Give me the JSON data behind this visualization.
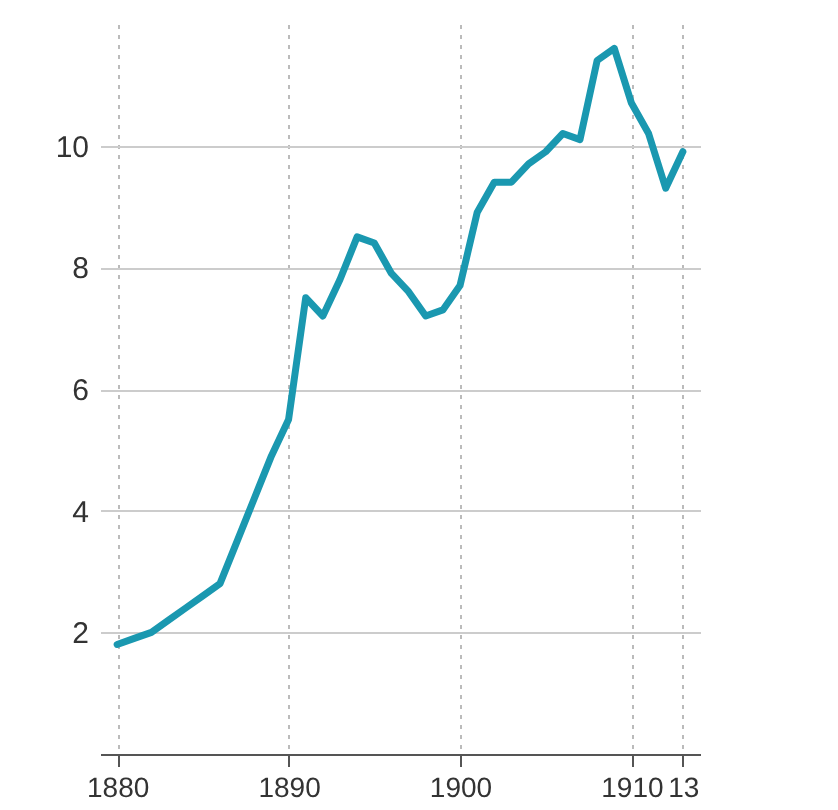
{
  "chart_data": {
    "type": "line",
    "x": [
      1880,
      1881,
      1882,
      1883,
      1884,
      1885,
      1886,
      1887,
      1888,
      1889,
      1890,
      1891,
      1892,
      1893,
      1894,
      1895,
      1896,
      1897,
      1898,
      1899,
      1900,
      1901,
      1902,
      1903,
      1904,
      1905,
      1906,
      1907,
      1908,
      1909,
      1910,
      1911,
      1912,
      1913
    ],
    "series": [
      {
        "color": "#1a98b0",
        "values": [
          1.8,
          1.9,
          2.0,
          2.2,
          2.4,
          2.6,
          2.8,
          3.5,
          4.2,
          4.9,
          5.5,
          7.5,
          7.2,
          7.8,
          8.5,
          8.4,
          7.9,
          7.6,
          7.2,
          7.3,
          7.7,
          8.9,
          9.4,
          9.4,
          9.7,
          9.9,
          10.2,
          10.1,
          11.4,
          11.6,
          10.7,
          10.2,
          9.3,
          9.9
        ]
      }
    ],
    "xlim": [
      1879,
      1914
    ],
    "xticks": [
      1880,
      1890,
      1900,
      1910,
      {
        "value": 1913,
        "label": "13"
      }
    ],
    "ylim": [
      0,
      12
    ],
    "yticks": [
      2,
      4,
      6,
      8,
      10
    ],
    "grid": true,
    "marker": "none",
    "line_style": "solid"
  }
}
